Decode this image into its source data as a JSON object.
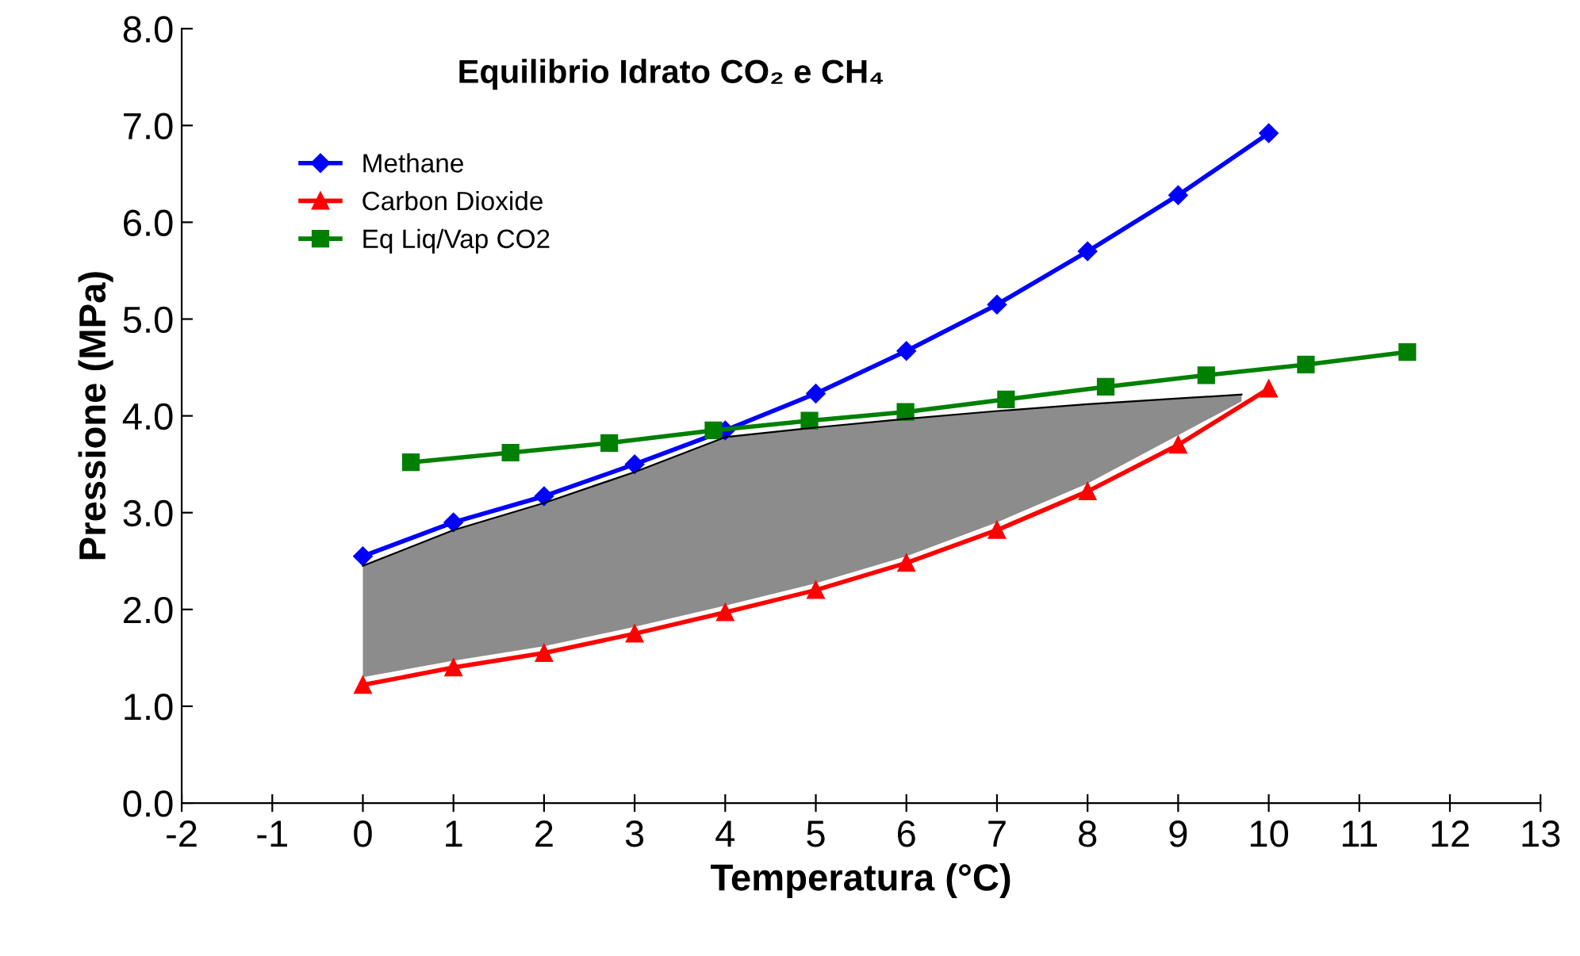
{
  "chart_data": {
    "type": "line",
    "title": "Equilibrio Idrato CO₂ e CH₄",
    "xlabel": "Temperatura (°C)",
    "ylabel": "Pressione (MPa)",
    "series": [
      {
        "name": "Methane",
        "color": "#0000ff",
        "marker": "diamond",
        "x": [
          0,
          1,
          2,
          3,
          4,
          5,
          6,
          7,
          8,
          9,
          10
        ],
        "values": [
          2.55,
          2.9,
          3.17,
          3.5,
          3.85,
          4.23,
          4.67,
          5.15,
          5.7,
          6.28,
          6.92
        ]
      },
      {
        "name": "Carbon Dioxide",
        "color": "#ff0000",
        "marker": "triangle",
        "x": [
          0,
          1,
          2,
          3,
          4,
          5,
          6,
          7,
          8,
          9,
          10
        ],
        "values": [
          1.22,
          1.4,
          1.55,
          1.75,
          1.97,
          2.2,
          2.48,
          2.82,
          3.22,
          3.7,
          4.28
        ]
      },
      {
        "name": "Eq Liq/Vap CO2",
        "color": "#008000",
        "marker": "square",
        "x": [
          0.53,
          1.63,
          2.72,
          3.87,
          4.93,
          5.99,
          7.1,
          8.2,
          9.31,
          10.41,
          11.53
        ],
        "values": [
          3.52,
          3.62,
          3.72,
          3.85,
          3.95,
          4.04,
          4.17,
          4.3,
          4.42,
          4.53,
          4.66
        ]
      },
      {
        "type": "line",
        "marker": "none",
        "color": "#000000",
        "x": [
          0,
          1,
          2,
          3,
          4,
          5,
          6,
          7,
          8,
          9,
          9.7
        ],
        "values": [
          2.45,
          2.82,
          3.1,
          3.42,
          3.78,
          3.88,
          3.97,
          4.05,
          4.12,
          4.18,
          4.22
        ],
        "upper": [
          2.45,
          2.82,
          3.1,
          3.42,
          3.78,
          3.88,
          3.97,
          4.05,
          4.12,
          4.18,
          4.22
        ],
        "lower": [
          1.3,
          1.47,
          1.62,
          1.82,
          2.04,
          2.27,
          2.55,
          2.9,
          3.3,
          3.8,
          4.15
        ]
      }
    ],
    "xlim": [
      -2,
      13
    ],
    "xticks": [
      -2,
      -1,
      0,
      1,
      2,
      3,
      4,
      5,
      6,
      7,
      8,
      9,
      10,
      11,
      12,
      13
    ],
    "ylim": [
      0,
      8
    ],
    "yticks": [
      {
        "value": 0,
        "label": "0.0"
      },
      {
        "value": 1,
        "label": "1.0"
      },
      {
        "value": 2,
        "label": "2.0"
      },
      {
        "value": 3,
        "label": "3.0"
      },
      {
        "value": 4,
        "label": "4.0"
      },
      {
        "value": 5,
        "label": "5.0"
      },
      {
        "value": 6,
        "label": "6.0"
      },
      {
        "value": 7,
        "label": "7.0"
      },
      {
        "value": 8,
        "label": "8.0"
      }
    ],
    "grid": false,
    "legend": "top left",
    "line_style": "solid"
  }
}
